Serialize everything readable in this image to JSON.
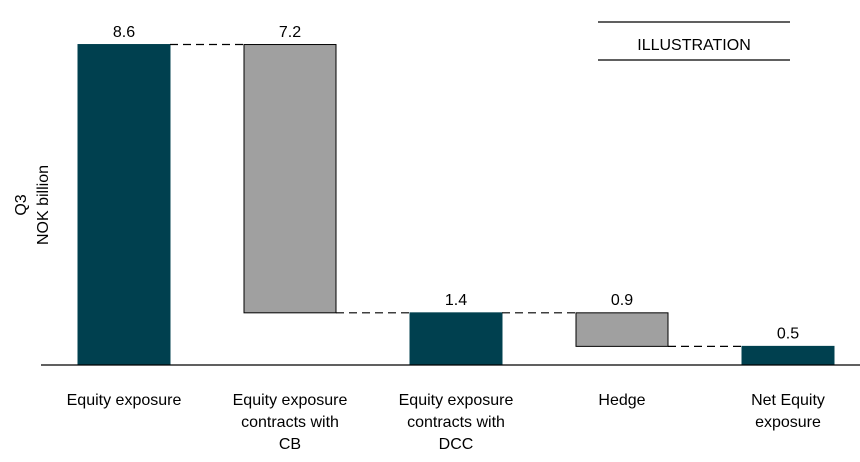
{
  "chart_data": {
    "type": "waterfall",
    "ylabel": [
      "Q3",
      "NOK billion"
    ],
    "annotation": "ILLUSTRATION",
    "categories": [
      "Equity exposure",
      "Equity exposure\ncontracts with\nCB",
      "Equity exposure\ncontracts with\nDCC",
      "Hedge",
      "Net Equity\nexposure"
    ],
    "values": [
      8.6,
      7.2,
      1.4,
      0.9,
      0.5
    ],
    "measures": [
      "total",
      "decrease",
      "total",
      "decrease",
      "total"
    ],
    "colors": {
      "total": "#00404f",
      "decrease": "#a0a0a0"
    },
    "ylim": [
      0,
      9.5
    ]
  }
}
